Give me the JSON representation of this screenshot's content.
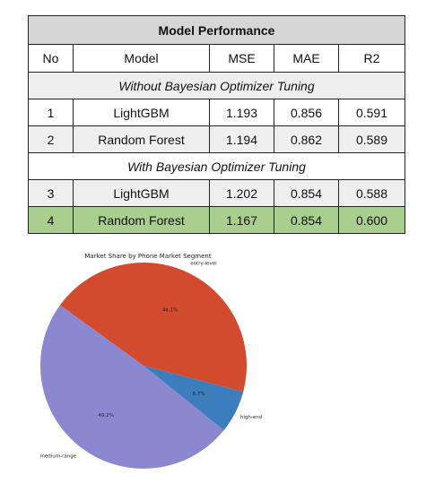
{
  "table": {
    "title": "Model Performance",
    "headers": [
      "No",
      "Model",
      "MSE",
      "MAE",
      "R2"
    ],
    "sections": [
      {
        "label": "Without Bayesian Optimizer Tuning",
        "rows": [
          [
            "1",
            "LightGBM",
            "1.193",
            "0.856",
            "0.591"
          ],
          [
            "2",
            "Random Forest",
            "1.194",
            "0.862",
            "0.589"
          ]
        ]
      },
      {
        "label": "With Bayesian Optimizer Tuning",
        "rows": [
          [
            "3",
            "LightGBM",
            "1.202",
            "0.854",
            "0.588"
          ],
          [
            "4",
            "Random Forest",
            "1.167",
            "0.854",
            "0.600"
          ]
        ]
      }
    ],
    "highlight_color": "#a9cf8e"
  },
  "chart_data": {
    "type": "pie",
    "title": "Market Share by Phone Market Segment",
    "categories": [
      "medium-range",
      "high-end",
      "entry-level"
    ],
    "values": [
      49.2,
      6.7,
      44.1
    ],
    "value_labels": [
      "49.2%",
      "6.7%",
      "44.1%"
    ],
    "colors": [
      "#8c88d0",
      "#3c7dbd",
      "#d24b2e"
    ],
    "start_angle_deg": 144,
    "direction": "counterclockwise"
  }
}
